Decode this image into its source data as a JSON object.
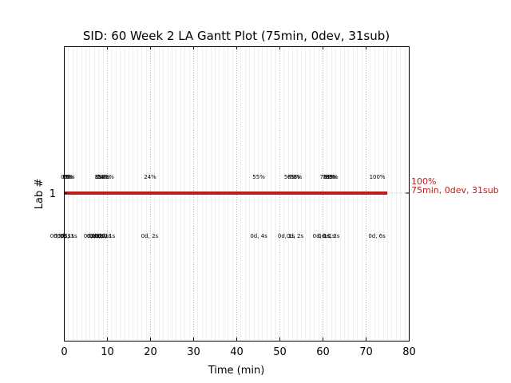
{
  "chart_data": {
    "type": "gantt",
    "title": "SID: 60 Week 2 LA Gantt Plot (75min, 0dev, 31sub)",
    "xlabel": "Time (min)",
    "ylabel": "Lab #",
    "xlim": [
      0,
      80
    ],
    "x_ticks": [
      0,
      10,
      20,
      30,
      40,
      50,
      60,
      70,
      80
    ],
    "x_tick_labels": [
      "0",
      "10",
      "20",
      "30",
      "40",
      "50",
      "60",
      "70",
      "80"
    ],
    "y_ticks": [
      1
    ],
    "y_tick_labels": [
      "1"
    ],
    "grid": "vertical dotted, major every 10 and minor every 1",
    "bar": {
      "lab": 1,
      "start": 0,
      "end": 75,
      "color": "#c01a1a"
    },
    "end_label": {
      "percent": "100%",
      "detail": "75min, 0dev, 31sub",
      "color": "#c01a1a"
    },
    "percent_labels": [
      {
        "x": 0.3,
        "text": "0%"
      },
      {
        "x": 0.7,
        "text": "0%"
      },
      {
        "x": 1.1,
        "text": "3%"
      },
      {
        "x": 1.5,
        "text": "6%"
      },
      {
        "x": 8.2,
        "text": "8%"
      },
      {
        "x": 8.6,
        "text": "11%"
      },
      {
        "x": 9.0,
        "text": "14%"
      },
      {
        "x": 9.3,
        "text": "18%"
      },
      {
        "x": 10.2,
        "text": "21%"
      },
      {
        "x": 20.0,
        "text": "24%"
      },
      {
        "x": 45.2,
        "text": "55%"
      },
      {
        "x": 52.5,
        "text": "58%"
      },
      {
        "x": 53.3,
        "text": "61%"
      },
      {
        "x": 53.8,
        "text": "70%"
      },
      {
        "x": 60.8,
        "text": "76%"
      },
      {
        "x": 61.4,
        "text": "79%"
      },
      {
        "x": 61.8,
        "text": "82%"
      },
      {
        "x": 62.2,
        "text": "85%"
      },
      {
        "x": 72.7,
        "text": "100%"
      }
    ],
    "duration_labels": [
      {
        "x": -1.2,
        "text": "0d, 0s"
      },
      {
        "x": -0.4,
        "text": "0d, 1s"
      },
      {
        "x": 0.4,
        "text": "0d, 1s"
      },
      {
        "x": 1.1,
        "text": "0d, 1s"
      },
      {
        "x": 6.6,
        "text": "0d, 0s"
      },
      {
        "x": 7.3,
        "text": "0d, 0s"
      },
      {
        "x": 7.9,
        "text": "0d, 0s"
      },
      {
        "x": 8.4,
        "text": "0d, 1s"
      },
      {
        "x": 9.0,
        "text": "0d, 1s"
      },
      {
        "x": 9.9,
        "text": "0d, 1s"
      },
      {
        "x": 19.9,
        "text": "0d, 2s"
      },
      {
        "x": 45.2,
        "text": "0d, 4s"
      },
      {
        "x": 51.6,
        "text": "0d, 1s"
      },
      {
        "x": 53.6,
        "text": "0d, 2s"
      },
      {
        "x": 59.7,
        "text": "0d, 1s"
      },
      {
        "x": 60.9,
        "text": "0d, 1s"
      },
      {
        "x": 62.0,
        "text": "0d, 3s"
      },
      {
        "x": 72.6,
        "text": "0d, 6s"
      }
    ]
  }
}
